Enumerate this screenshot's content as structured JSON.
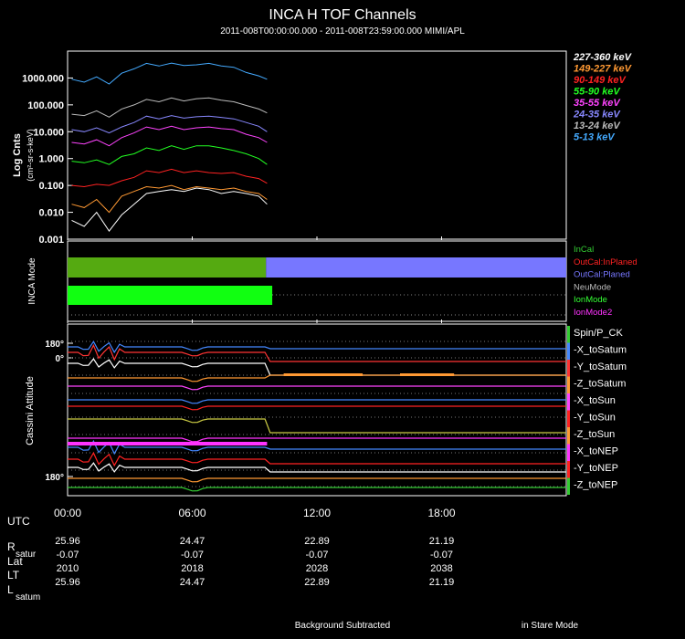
{
  "title": "INCA H TOF Channels",
  "subtitle": "2011-008T00:00:00.000 - 2011-008T23:59:00.000 MIMI/APL",
  "chart_data": [
    {
      "type": "line",
      "panel": "counts",
      "ylabel": "Log Cnts",
      "ylabel_units": "(cm²-sr-s-keV)",
      "yscale": "log",
      "ylim": [
        0.001,
        10000
      ],
      "yticks": [
        "1000.000",
        "100.000",
        "10.000",
        "1.000",
        "0.100",
        "0.010",
        "0.001"
      ],
      "ytick_values": [
        1000,
        100,
        10,
        1,
        0.1,
        0.01,
        0.001
      ],
      "xlim_hours": [
        0,
        24
      ],
      "series": [
        {
          "name": "227-360 keV",
          "color": "#ffffff",
          "x": [
            0.2,
            0.8,
            1.4,
            2.0,
            2.6,
            3.2,
            3.8,
            4.4,
            5.0,
            5.6,
            6.2,
            6.8,
            7.4,
            8.0,
            8.6,
            9.2,
            9.6
          ],
          "values": [
            0.005,
            0.003,
            0.01,
            0.002,
            0.008,
            0.02,
            0.05,
            0.06,
            0.07,
            0.06,
            0.08,
            0.07,
            0.05,
            0.06,
            0.05,
            0.04,
            0.02
          ]
        },
        {
          "name": "149-227 keV",
          "color": "#ff9933",
          "x": [
            0.2,
            0.8,
            1.4,
            2.0,
            2.6,
            3.2,
            3.8,
            4.4,
            5.0,
            5.6,
            6.2,
            6.8,
            7.4,
            8.0,
            8.6,
            9.2,
            9.6
          ],
          "values": [
            0.02,
            0.015,
            0.03,
            0.01,
            0.04,
            0.06,
            0.09,
            0.08,
            0.1,
            0.07,
            0.09,
            0.08,
            0.07,
            0.08,
            0.06,
            0.05,
            0.03
          ]
        },
        {
          "name": "90-149 keV",
          "color": "#ff2222",
          "x": [
            0.2,
            0.8,
            1.4,
            2.0,
            2.6,
            3.2,
            3.8,
            4.4,
            5.0,
            5.6,
            6.2,
            6.8,
            7.4,
            8.0,
            8.6,
            9.2,
            9.6
          ],
          "values": [
            0.1,
            0.09,
            0.11,
            0.1,
            0.15,
            0.2,
            0.35,
            0.3,
            0.4,
            0.3,
            0.35,
            0.3,
            0.28,
            0.3,
            0.22,
            0.18,
            0.12
          ]
        },
        {
          "name": "55-90 keV",
          "color": "#22ff22",
          "x": [
            0.2,
            0.8,
            1.4,
            2.0,
            2.6,
            3.2,
            3.8,
            4.4,
            5.0,
            5.6,
            6.2,
            6.8,
            7.4,
            8.0,
            8.6,
            9.2,
            9.6
          ],
          "values": [
            0.8,
            0.7,
            0.9,
            0.6,
            1.2,
            1.5,
            2.5,
            2.0,
            3.0,
            2.2,
            3.0,
            3.0,
            2.5,
            2.0,
            1.5,
            1.0,
            0.6
          ]
        },
        {
          "name": "35-55 keV",
          "color": "#ff44ff",
          "x": [
            0.2,
            0.8,
            1.4,
            2.0,
            2.6,
            3.2,
            3.8,
            4.4,
            5.0,
            5.6,
            6.2,
            6.8,
            7.4,
            8.0,
            8.6,
            9.2,
            9.6
          ],
          "values": [
            4,
            3.5,
            5,
            3,
            6,
            9,
            15,
            12,
            16,
            12,
            14,
            15,
            13,
            12,
            8,
            6,
            4
          ]
        },
        {
          "name": "24-35 keV",
          "color": "#8888ff",
          "x": [
            0.2,
            0.8,
            1.4,
            2.0,
            2.6,
            3.2,
            3.8,
            4.4,
            5.0,
            5.6,
            6.2,
            6.8,
            7.4,
            8.0,
            8.6,
            9.2,
            9.6
          ],
          "values": [
            12,
            10,
            14,
            9,
            15,
            22,
            38,
            30,
            40,
            32,
            36,
            38,
            34,
            30,
            22,
            16,
            10
          ]
        },
        {
          "name": "13-24 keV",
          "color": "#bbbbbb",
          "x": [
            0.2,
            0.8,
            1.4,
            2.0,
            2.6,
            3.2,
            3.8,
            4.4,
            5.0,
            5.6,
            6.2,
            6.8,
            7.4,
            8.0,
            8.6,
            9.2,
            9.6
          ],
          "values": [
            45,
            40,
            60,
            35,
            70,
            100,
            160,
            130,
            180,
            140,
            170,
            180,
            150,
            130,
            95,
            70,
            50
          ]
        },
        {
          "name": "5-13 keV",
          "color": "#44aaff",
          "x": [
            0.2,
            0.8,
            1.4,
            2.0,
            2.6,
            3.2,
            3.8,
            4.4,
            5.0,
            5.6,
            6.2,
            6.8,
            7.4,
            8.0,
            8.6,
            9.2,
            9.6
          ],
          "values": [
            900,
            700,
            1100,
            600,
            1500,
            2200,
            3500,
            2800,
            3600,
            2900,
            3100,
            3500,
            2800,
            2500,
            1600,
            1200,
            900
          ]
        }
      ]
    },
    {
      "type": "bar",
      "panel": "inca-mode",
      "ylabel": "INCA Mode",
      "xlim_hours": [
        0,
        24
      ],
      "rows": [
        {
          "name": "InCal",
          "color": "#33cc33",
          "segments": []
        },
        {
          "name": "OutCal:InPlaned",
          "color": "#ff2222",
          "segments": []
        },
        {
          "name": "OutCal:Planed",
          "color": "#7777ff",
          "segments": [
            [
              9.55,
              24
            ]
          ]
        },
        {
          "name": "NeuMode",
          "color": "#bbbbbb",
          "segments": []
        },
        {
          "name": "IonMode",
          "color": "#33ff33",
          "segments": [
            [
              0,
              9.55
            ]
          ]
        },
        {
          "name": "IonMode2",
          "color": "#ff33ff",
          "segments": []
        }
      ],
      "row_band_spans": [
        {
          "row": "InCal-band",
          "color": "#55aa11",
          "segment": [
            0,
            9.55
          ]
        },
        {
          "row": "InCal-band",
          "color": "#7777ff",
          "segment": [
            9.55,
            24
          ]
        },
        {
          "row": "IonMode-band",
          "color": "#11ff11",
          "segment": [
            0,
            9.85
          ]
        }
      ]
    },
    {
      "type": "line",
      "panel": "cassini-attitude",
      "ylabel": "Cassini Attitude",
      "ytick_labels": [
        "180°",
        "0°",
        "180°"
      ],
      "xlim_hours": [
        0,
        24
      ],
      "series": [
        {
          "name": "Spin/P_CK",
          "color": "#ffffff"
        },
        {
          "name": "-X_toSatum",
          "color": "#4488ff"
        },
        {
          "name": "-Y_toSatum",
          "color": "#ff3333"
        },
        {
          "name": "-Z_toSatum",
          "color": "#ff9933"
        },
        {
          "name": "-X_toSun",
          "color": "#ff44ff"
        },
        {
          "name": "-Y_toSun",
          "color": "#ff2222"
        },
        {
          "name": "-Z_toSun",
          "color": "#ff9933"
        },
        {
          "name": "-X_toNEP",
          "color": "#ff33ff"
        },
        {
          "name": "-Y_toNEP",
          "color": "#ff2222"
        },
        {
          "name": "-Z_toNEP",
          "color": "#33cc33"
        }
      ]
    }
  ],
  "time_axis": {
    "ticks": [
      "00:00",
      "06:00",
      "12:00",
      "18:00"
    ],
    "tick_hours": [
      0,
      6,
      12,
      18
    ]
  },
  "ephemeris": {
    "utc_label": "UTC",
    "rows": [
      {
        "label": "R",
        "sub": "satur",
        "values": [
          "25.96",
          "24.47",
          "22.89",
          "21.19"
        ]
      },
      {
        "label": "Lat",
        "sub": "",
        "values": [
          "-0.07",
          "-0.07",
          "-0.07",
          "-0.07"
        ]
      },
      {
        "label": "LT",
        "sub": "",
        "values": [
          "2010",
          "2018",
          "2028",
          "2038"
        ]
      },
      {
        "label": "L",
        "sub": "satum",
        "values": [
          "25.96",
          "24.47",
          "22.89",
          "21.19"
        ]
      }
    ]
  },
  "footer": {
    "left": "Background Subtracted",
    "right": "in Stare Mode"
  }
}
